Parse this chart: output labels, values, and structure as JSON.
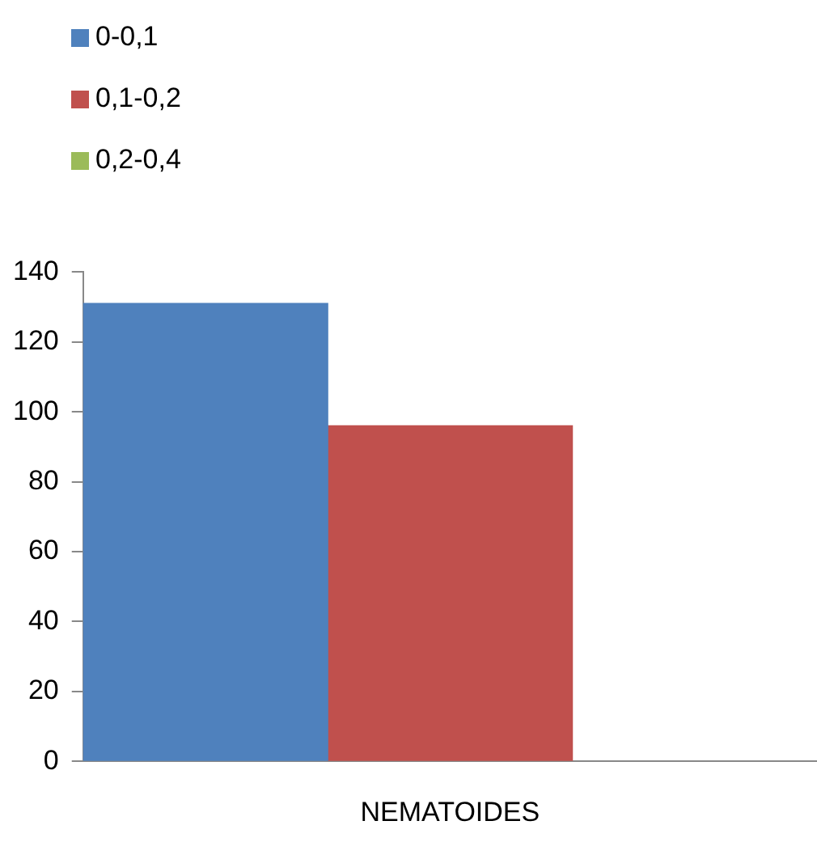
{
  "chart_data": {
    "type": "bar",
    "categories": [
      "NEMATOIDES"
    ],
    "series": [
      {
        "name": "0-0,1",
        "color": "#4f81bd",
        "values": [
          131
        ]
      },
      {
        "name": "0,1-0,2",
        "color": "#c0504d",
        "values": [
          96
        ]
      },
      {
        "name": "0,2-0,4",
        "color": "#9bbb59",
        "values": [
          null
        ]
      }
    ],
    "ylim": [
      0,
      140
    ],
    "yticks": [
      0,
      20,
      40,
      60,
      80,
      100,
      120,
      140
    ],
    "grid": false,
    "legend": "top left"
  }
}
